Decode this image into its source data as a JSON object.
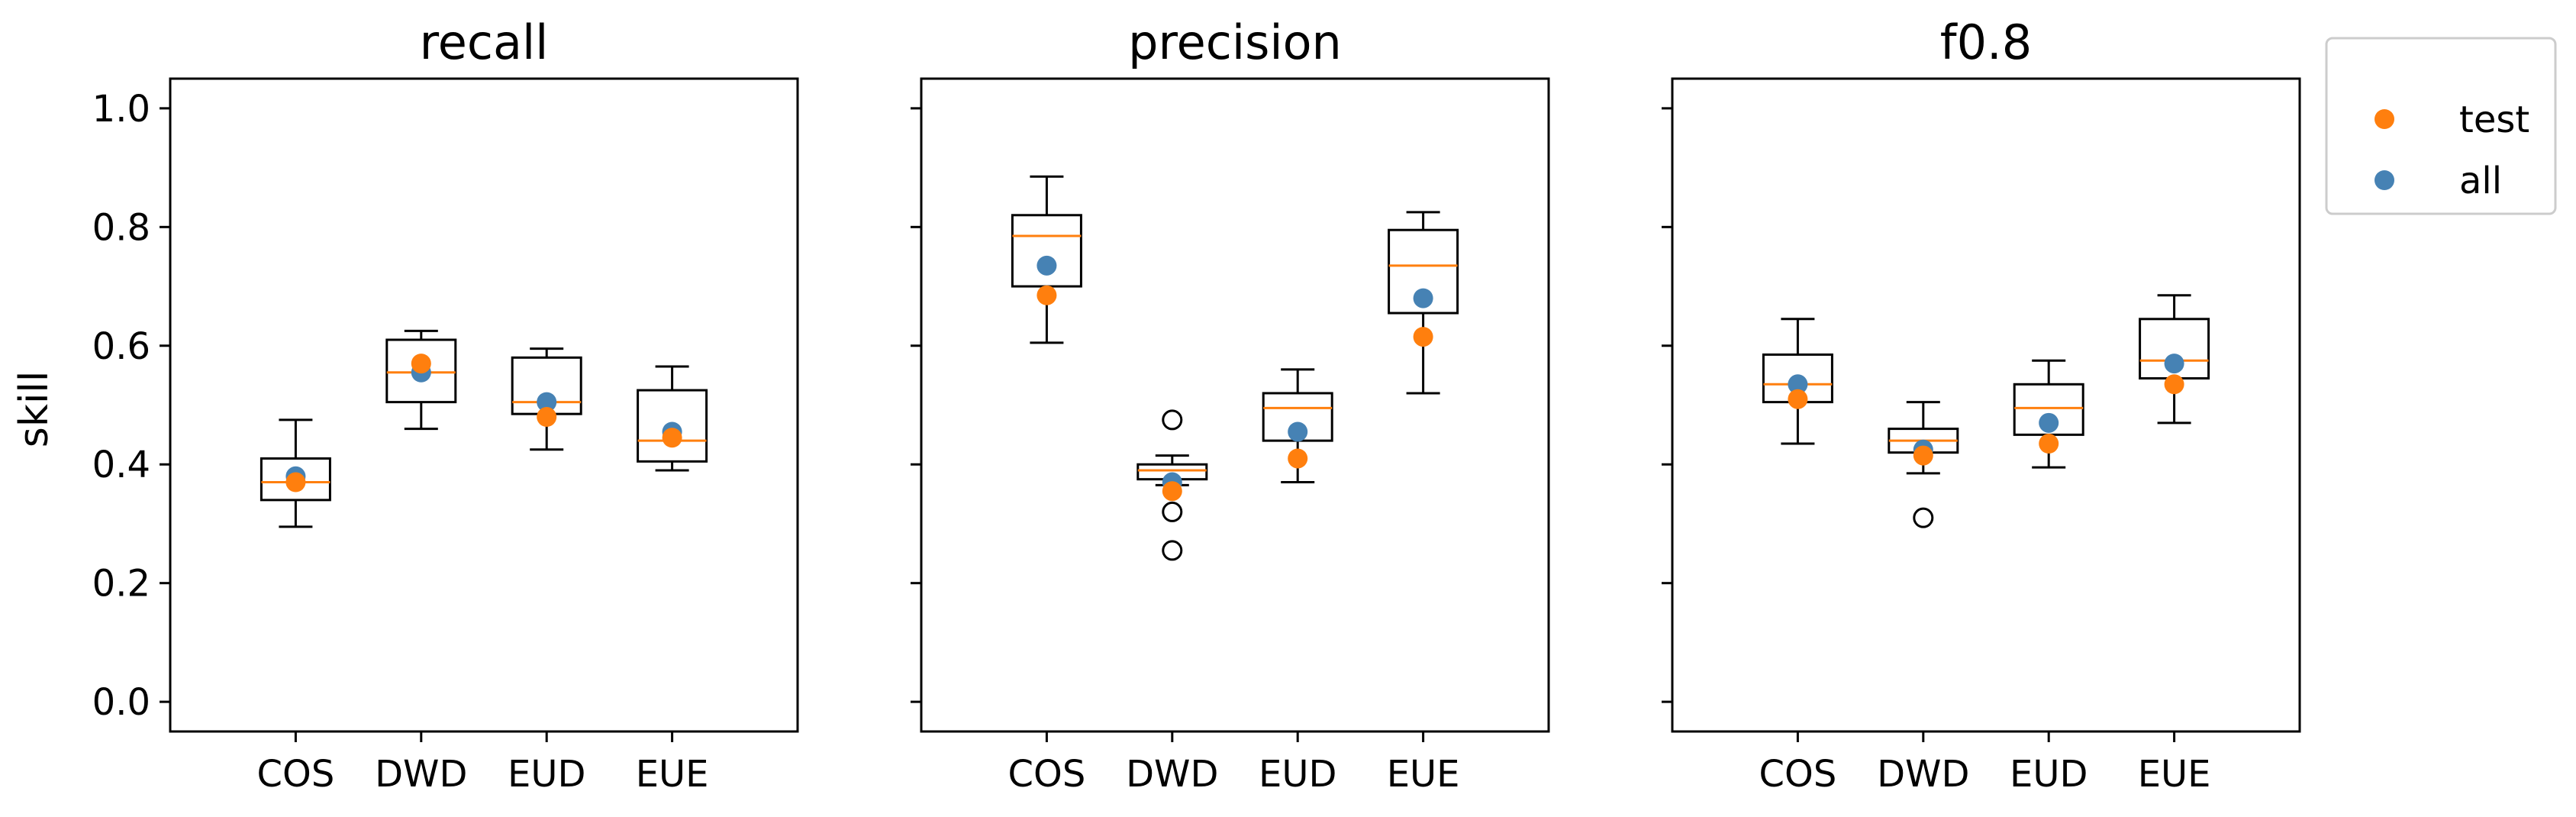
{
  "chart_data": {
    "type": "box",
    "ylabel": "skill",
    "ylim": [
      -0.05,
      1.05
    ],
    "yticks": [
      "0.0",
      "0.2",
      "0.4",
      "0.6",
      "0.8",
      "1.0"
    ],
    "categories": [
      "COS",
      "DWD",
      "EUD",
      "EUE"
    ],
    "legend": {
      "placement": "outside top-right",
      "items": [
        {
          "label": "test",
          "color": "#ff7f0e"
        },
        {
          "label": "all",
          "color": "#4682b4"
        }
      ]
    },
    "panels": [
      {
        "title": "recall",
        "show_yticklabels": true,
        "boxes": [
          {
            "whislo": 0.295,
            "q1": 0.34,
            "med": 0.37,
            "q3": 0.41,
            "whishi": 0.475,
            "fliers": [],
            "test": 0.37,
            "all": 0.38
          },
          {
            "whislo": 0.46,
            "q1": 0.505,
            "med": 0.555,
            "q3": 0.61,
            "whishi": 0.625,
            "fliers": [],
            "test": 0.57,
            "all": 0.555
          },
          {
            "whislo": 0.425,
            "q1": 0.485,
            "med": 0.505,
            "q3": 0.58,
            "whishi": 0.595,
            "fliers": [],
            "test": 0.48,
            "all": 0.505
          },
          {
            "whislo": 0.39,
            "q1": 0.405,
            "med": 0.44,
            "q3": 0.525,
            "whishi": 0.565,
            "fliers": [],
            "test": 0.445,
            "all": 0.455
          }
        ]
      },
      {
        "title": "precision",
        "show_yticklabels": false,
        "boxes": [
          {
            "whislo": 0.605,
            "q1": 0.7,
            "med": 0.785,
            "q3": 0.82,
            "whishi": 0.885,
            "fliers": [],
            "test": 0.685,
            "all": 0.735
          },
          {
            "whislo": 0.365,
            "q1": 0.375,
            "med": 0.39,
            "q3": 0.4,
            "whishi": 0.415,
            "fliers": [
              0.475,
              0.32,
              0.255
            ],
            "test": 0.355,
            "all": 0.37
          },
          {
            "whislo": 0.37,
            "q1": 0.44,
            "med": 0.495,
            "q3": 0.52,
            "whishi": 0.56,
            "fliers": [],
            "test": 0.41,
            "all": 0.455
          },
          {
            "whislo": 0.52,
            "q1": 0.655,
            "med": 0.735,
            "q3": 0.795,
            "whishi": 0.825,
            "fliers": [],
            "test": 0.615,
            "all": 0.68
          }
        ]
      },
      {
        "title": "f0.8",
        "show_yticklabels": false,
        "boxes": [
          {
            "whislo": 0.435,
            "q1": 0.505,
            "med": 0.535,
            "q3": 0.585,
            "whishi": 0.645,
            "fliers": [],
            "test": 0.51,
            "all": 0.535
          },
          {
            "whislo": 0.385,
            "q1": 0.42,
            "med": 0.44,
            "q3": 0.46,
            "whishi": 0.505,
            "fliers": [
              0.31
            ],
            "test": 0.415,
            "all": 0.425
          },
          {
            "whislo": 0.395,
            "q1": 0.45,
            "med": 0.495,
            "q3": 0.535,
            "whishi": 0.575,
            "fliers": [],
            "test": 0.435,
            "all": 0.47
          },
          {
            "whislo": 0.47,
            "q1": 0.545,
            "med": 0.575,
            "q3": 0.645,
            "whishi": 0.685,
            "fliers": [],
            "test": 0.535,
            "all": 0.57
          }
        ]
      }
    ],
    "colors": {
      "median": "#ff7f0e",
      "test": "#ff7f0e",
      "all": "#4682b4",
      "box": "#000000"
    }
  }
}
